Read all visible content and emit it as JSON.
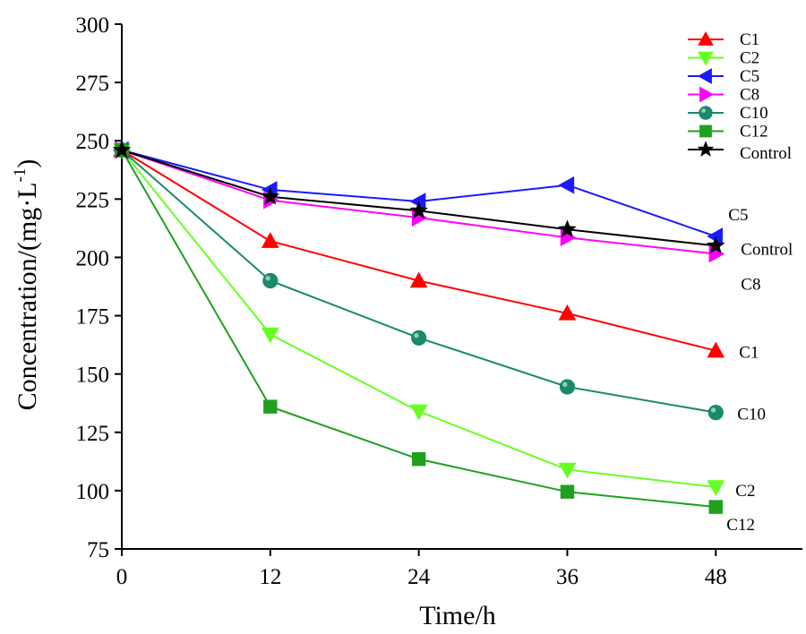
{
  "chart_data": {
    "type": "line",
    "title": "",
    "xlabel": "Time/h",
    "ylabel": "Concentration/(mg·L",
    "ylabel_sup": "-1",
    "ylabel_close": ")",
    "xlim": [
      0,
      55
    ],
    "ylim": [
      75,
      300
    ],
    "x": [
      0,
      12,
      24,
      36,
      48
    ],
    "x_ticks": [
      0,
      12,
      24,
      36,
      48
    ],
    "y_ticks": [
      75,
      100,
      125,
      150,
      175,
      200,
      225,
      250,
      275,
      300
    ],
    "grid": false,
    "legend_position": "top-right",
    "series": [
      {
        "name": "C1",
        "marker": "triangle-up",
        "color": "#ff0000",
        "values": [
          246,
          207,
          190,
          176,
          160
        ],
        "end_label": "C1"
      },
      {
        "name": "C2",
        "marker": "triangle-down",
        "color": "#66ff22",
        "values": [
          246,
          167,
          134,
          109,
          101.5
        ],
        "end_label": "C2"
      },
      {
        "name": "C5",
        "marker": "triangle-left",
        "color": "#1a1aff",
        "values": [
          246,
          229,
          224,
          231,
          209
        ],
        "end_label": "C5"
      },
      {
        "name": "C8",
        "marker": "triangle-right",
        "color": "#ff00ff",
        "values": [
          246,
          224.5,
          217,
          208.5,
          201.5
        ],
        "end_label": "C8"
      },
      {
        "name": "C10",
        "marker": "circle",
        "color": "#1a8a6a",
        "values": [
          246,
          190,
          165.5,
          144.5,
          133.5
        ],
        "end_label": "C10"
      },
      {
        "name": "C12",
        "marker": "square",
        "color": "#1fa01f",
        "values": [
          246,
          136,
          113.5,
          99.5,
          93
        ],
        "end_label": "C12"
      },
      {
        "name": "Control",
        "marker": "star",
        "color": "#000000",
        "values": [
          246,
          226,
          220,
          212,
          205
        ],
        "end_label": "Control"
      }
    ]
  }
}
